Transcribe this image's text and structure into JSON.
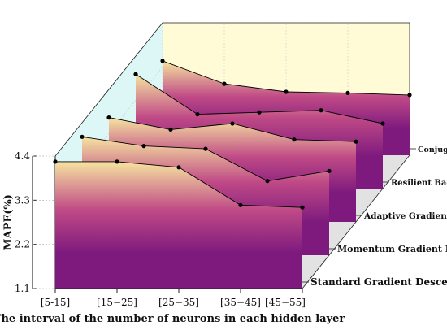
{
  "chart_data": {
    "type": "area",
    "title": "",
    "xlabel": "The interval of the number of neurons in each hidden layer",
    "ylabel": "MAPE(%)",
    "categories": [
      "[5-15]",
      "[15−25]",
      "[25−35]",
      "[35−45]",
      "[45−55]"
    ],
    "ylim": [
      1.1,
      4.4
    ],
    "yticks": [
      "1.1",
      "2.2",
      "3.3",
      "4.4"
    ],
    "series": [
      {
        "name": "Standard Gradient Descent",
        "values": [
          4.26,
          4.26,
          4.12,
          3.18,
          3.12
        ]
      },
      {
        "name": "Momentum Gradient Descent",
        "values": [
          4.05,
          3.82,
          3.75,
          2.95,
          3.2
        ]
      },
      {
        "name": "Adaptive Gradient Algorithm",
        "values": [
          3.7,
          3.4,
          3.55,
          3.15,
          3.1
        ]
      },
      {
        "name": "Resilient Backpropagation",
        "values": [
          3.95,
          2.95,
          3.0,
          3.05,
          2.72
        ]
      },
      {
        "name": "Conjugate Gradient Descent",
        "values": [
          3.45,
          2.88,
          2.68,
          2.65,
          2.6
        ]
      }
    ],
    "legend_position": "right, one label per series depth",
    "colors": {
      "base": "#7e1a7e",
      "mid": "#c04a86",
      "top": "#f6e4a0",
      "wall_left": "#ddf6f6",
      "wall_back": "#fffbd6",
      "floor": "#e2e2e2",
      "frame": "#222222"
    }
  }
}
